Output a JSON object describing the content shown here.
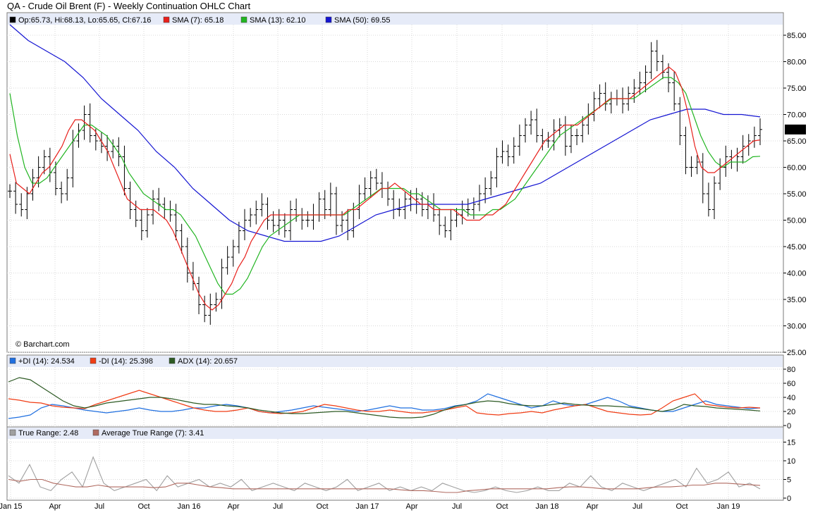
{
  "title": "QA - Crude Oil Brent (F) - Weekly Continuation OHLC Chart",
  "watermark": "© Barchart.com",
  "colors": {
    "ohlc": "#000000",
    "sma7": "#e8201c",
    "sma13": "#22b522",
    "sma50": "#1414d2",
    "plus_di": "#1f6fe0",
    "minus_di": "#f03c14",
    "adx": "#2d5a24",
    "true_range": "#a0a0a0",
    "atr": "#b06a60",
    "last_price_bg": "#000000",
    "legend_band": "#e6ebf8"
  },
  "legends": {
    "price": [
      {
        "text": "Op:65.73, Hi:68.13, Lo:65.65, Cl:67.16",
        "color": "#000000"
      },
      {
        "text": "SMA (7): 65.18",
        "color": "#e8201c"
      },
      {
        "text": "SMA (13): 62.10",
        "color": "#22b522"
      },
      {
        "text": "SMA (50): 69.55",
        "color": "#1414d2"
      }
    ],
    "dmi": [
      {
        "text": "+DI (14): 24.534",
        "color": "#1f6fe0"
      },
      {
        "text": "-DI (14): 25.398",
        "color": "#f03c14"
      },
      {
        "text": "ADX (14): 20.657",
        "color": "#2d5a24"
      }
    ],
    "tr": [
      {
        "text": "True Range: 2.48",
        "color": "#a0a0a0"
      },
      {
        "text": "Average True Range (7): 3.41",
        "color": "#b06a60"
      }
    ]
  },
  "last_price_label": "67.16",
  "chart_data": [
    {
      "type": "line",
      "name": "price",
      "ohlc_style": "weekly OHLC bars",
      "x_ticks": [
        "Jan 15",
        "Apr",
        "Jul",
        "Oct",
        "Jan 16",
        "Apr",
        "Jul",
        "Oct",
        "Jan 17",
        "Apr",
        "Jul",
        "Oct",
        "Jan 18",
        "Apr",
        "Jul",
        "Oct",
        "Jan 19"
      ],
      "y_ticks": [
        "85.00",
        "80.00",
        "75.00",
        "70.00",
        "65.00",
        "60.00",
        "55.00",
        "50.00",
        "45.00",
        "40.00",
        "35.00",
        "30.00",
        "25.00"
      ],
      "ylim": [
        25,
        87.5
      ],
      "close": [
        55.5,
        53,
        52,
        55,
        58,
        60,
        62,
        59,
        56,
        55,
        58,
        65,
        67,
        70,
        66,
        65,
        64,
        63,
        64,
        62,
        56,
        52,
        50,
        48,
        51,
        54,
        53,
        52,
        51,
        48,
        45,
        40,
        38,
        34,
        32,
        34,
        35,
        41,
        43,
        45,
        48,
        50,
        51,
        52,
        53,
        50,
        49,
        50,
        48,
        52,
        51,
        50,
        50,
        51,
        54,
        52,
        55,
        49,
        50,
        48,
        52,
        55,
        56,
        58,
        57,
        56,
        54,
        52,
        52,
        54,
        53,
        54,
        52,
        53,
        51,
        49,
        48,
        50,
        51,
        52,
        52,
        53,
        55,
        56,
        58,
        62,
        63,
        62,
        64,
        66,
        68,
        69,
        66,
        65,
        65,
        67,
        68,
        64,
        66,
        66,
        68,
        70,
        73,
        74,
        72,
        73,
        73,
        72,
        74,
        75,
        76,
        78,
        82,
        80,
        78,
        76,
        72,
        66,
        60,
        60,
        61,
        55,
        52,
        57,
        60,
        62,
        61,
        62,
        64,
        65,
        66,
        67.16
      ],
      "sma7": [
        62.5,
        57,
        56,
        55,
        57,
        59,
        60,
        62,
        64,
        67,
        69,
        69,
        68,
        67,
        65,
        63,
        60,
        57,
        54,
        53,
        52,
        52,
        52,
        51,
        50,
        48,
        45,
        42,
        39,
        36,
        34,
        33,
        34,
        36,
        38,
        41,
        43,
        46,
        48,
        50,
        51,
        51,
        51,
        51,
        51,
        51,
        51,
        51,
        51,
        51,
        51,
        51,
        52,
        52,
        53,
        54,
        55,
        56,
        56,
        57,
        56,
        55,
        54,
        53,
        53,
        52,
        52,
        52,
        52,
        51,
        50,
        50,
        50,
        51,
        51,
        52,
        53,
        55,
        57,
        59,
        61,
        63,
        65,
        66,
        67,
        68,
        68,
        68,
        69,
        70,
        71,
        72,
        73,
        73,
        73,
        73,
        74,
        75,
        76,
        77,
        78,
        79,
        78,
        75,
        70,
        64,
        60,
        59,
        59,
        60,
        61,
        62,
        63,
        64,
        65,
        65.18
      ],
      "sma13": [
        74,
        66,
        60,
        57,
        57,
        58,
        60,
        62,
        64,
        66,
        68,
        68,
        67,
        66,
        64,
        62,
        59,
        57,
        55,
        54,
        53,
        52,
        52,
        51,
        49,
        47,
        44,
        41,
        38,
        36,
        36,
        37,
        39,
        42,
        45,
        47,
        48,
        49,
        50,
        51,
        51,
        51,
        51,
        51,
        51,
        51,
        52,
        53,
        54,
        55,
        56,
        56,
        56,
        56,
        55,
        55,
        54,
        53,
        52,
        52,
        52,
        52,
        51,
        51,
        51,
        52,
        52,
        53,
        54,
        56,
        58,
        60,
        62,
        64,
        66,
        67,
        68,
        69,
        70,
        71,
        72,
        73,
        73,
        73,
        73,
        74,
        75,
        76,
        77,
        77,
        76,
        74,
        70,
        66,
        63,
        61,
        60,
        61,
        61,
        61,
        62,
        62.1
      ],
      "sma50": [
        87,
        84,
        82,
        80,
        77,
        73,
        70,
        67,
        63,
        60,
        56,
        53,
        50,
        48,
        47,
        46,
        46,
        46,
        47,
        49,
        51,
        52,
        53,
        53,
        53,
        53,
        54,
        55,
        56,
        57,
        59,
        61,
        63,
        65,
        67,
        69,
        70,
        71,
        71,
        70,
        70,
        69.55
      ]
    },
    {
      "type": "line",
      "name": "DMI",
      "y_ticks": [
        "80",
        "60",
        "40",
        "20",
        "0"
      ],
      "ylim": [
        0,
        80
      ],
      "series": [
        {
          "name": "+DI (14)",
          "values": [
            10,
            12,
            15,
            25,
            30,
            28,
            25,
            22,
            20,
            18,
            20,
            22,
            25,
            22,
            20,
            20,
            22,
            25,
            25,
            28,
            30,
            28,
            25,
            20,
            18,
            20,
            22,
            25,
            28,
            26,
            24,
            22,
            20,
            22,
            25,
            28,
            25,
            25,
            22,
            22,
            24,
            28,
            30,
            35,
            45,
            40,
            35,
            30,
            25,
            28,
            35,
            30,
            28,
            30,
            35,
            40,
            35,
            28,
            25,
            22,
            20,
            20,
            25,
            30,
            35,
            30,
            28,
            26,
            24,
            25
          ]
        },
        {
          "name": "-DI (14)",
          "values": [
            38,
            36,
            33,
            32,
            28,
            26,
            25,
            24,
            30,
            35,
            40,
            45,
            50,
            45,
            40,
            35,
            30,
            25,
            22,
            20,
            20,
            22,
            25,
            20,
            18,
            17,
            18,
            20,
            25,
            30,
            28,
            25,
            22,
            20,
            20,
            22,
            20,
            18,
            18,
            20,
            22,
            25,
            28,
            18,
            16,
            15,
            17,
            18,
            20,
            18,
            22,
            25,
            28,
            30,
            25,
            20,
            18,
            16,
            15,
            16,
            25,
            35,
            40,
            45,
            30,
            28,
            26,
            25,
            26,
            25
          ]
        },
        {
          "name": "ADX (14)",
          "values": [
            62,
            68,
            65,
            55,
            45,
            35,
            28,
            25,
            28,
            32,
            34,
            36,
            38,
            40,
            40,
            38,
            35,
            32,
            30,
            30,
            28,
            27,
            25,
            22,
            20,
            18,
            17,
            17,
            18,
            19,
            20,
            20,
            18,
            16,
            14,
            12,
            11,
            11,
            12,
            16,
            22,
            27,
            30,
            33,
            35,
            34,
            31,
            29,
            28,
            28,
            30,
            32,
            30,
            29,
            28,
            28,
            27,
            26,
            24,
            22,
            20,
            23,
            30,
            28,
            27,
            25,
            24,
            23,
            22,
            20.657
          ]
        }
      ]
    },
    {
      "type": "line",
      "name": "True Range",
      "y_ticks": [
        "15",
        "10",
        "5",
        "0"
      ],
      "ylim": [
        0,
        17.5
      ],
      "series": [
        {
          "name": "True Range",
          "values": [
            6,
            4,
            9,
            3,
            2,
            5,
            7,
            3,
            11,
            4,
            2,
            3,
            4,
            5,
            2,
            6,
            3,
            4,
            5,
            3,
            4,
            3,
            5,
            2,
            3,
            4,
            3,
            2,
            4,
            3,
            2,
            3,
            5,
            2,
            3,
            4,
            2,
            3,
            2,
            3,
            2,
            4,
            3,
            2,
            1.5,
            2,
            3,
            2,
            1.5,
            2,
            3,
            2,
            2,
            4,
            3,
            6,
            3,
            2,
            4,
            3,
            2,
            3,
            4,
            5,
            3,
            8,
            4,
            5,
            7,
            3,
            4,
            2.48
          ]
        },
        {
          "name": "Average True Range (7)",
          "values": [
            5,
            4.5,
            5,
            5,
            4,
            3.5,
            3,
            3,
            3.5,
            3,
            3,
            3,
            3,
            2.8,
            3,
            4,
            4,
            3.5,
            3,
            2.8,
            2.5,
            2.5,
            2.5,
            2.5,
            2.5,
            2.5,
            2.5,
            2.5,
            2.5,
            2.5,
            2.5,
            2.5,
            2.5,
            2.5,
            2.5,
            2.2,
            2,
            2,
            1.8,
            1.5,
            1.5,
            2,
            2.2,
            2.5,
            2.5,
            2.5,
            2.5,
            2.5,
            2.5,
            2.8,
            3,
            3,
            2.8,
            2.5,
            2.5,
            2.5,
            2.5,
            2.8,
            3,
            3,
            3.2,
            3.5,
            3.5,
            4,
            4,
            3.8,
            3.6,
            3.41
          ]
        }
      ]
    }
  ]
}
